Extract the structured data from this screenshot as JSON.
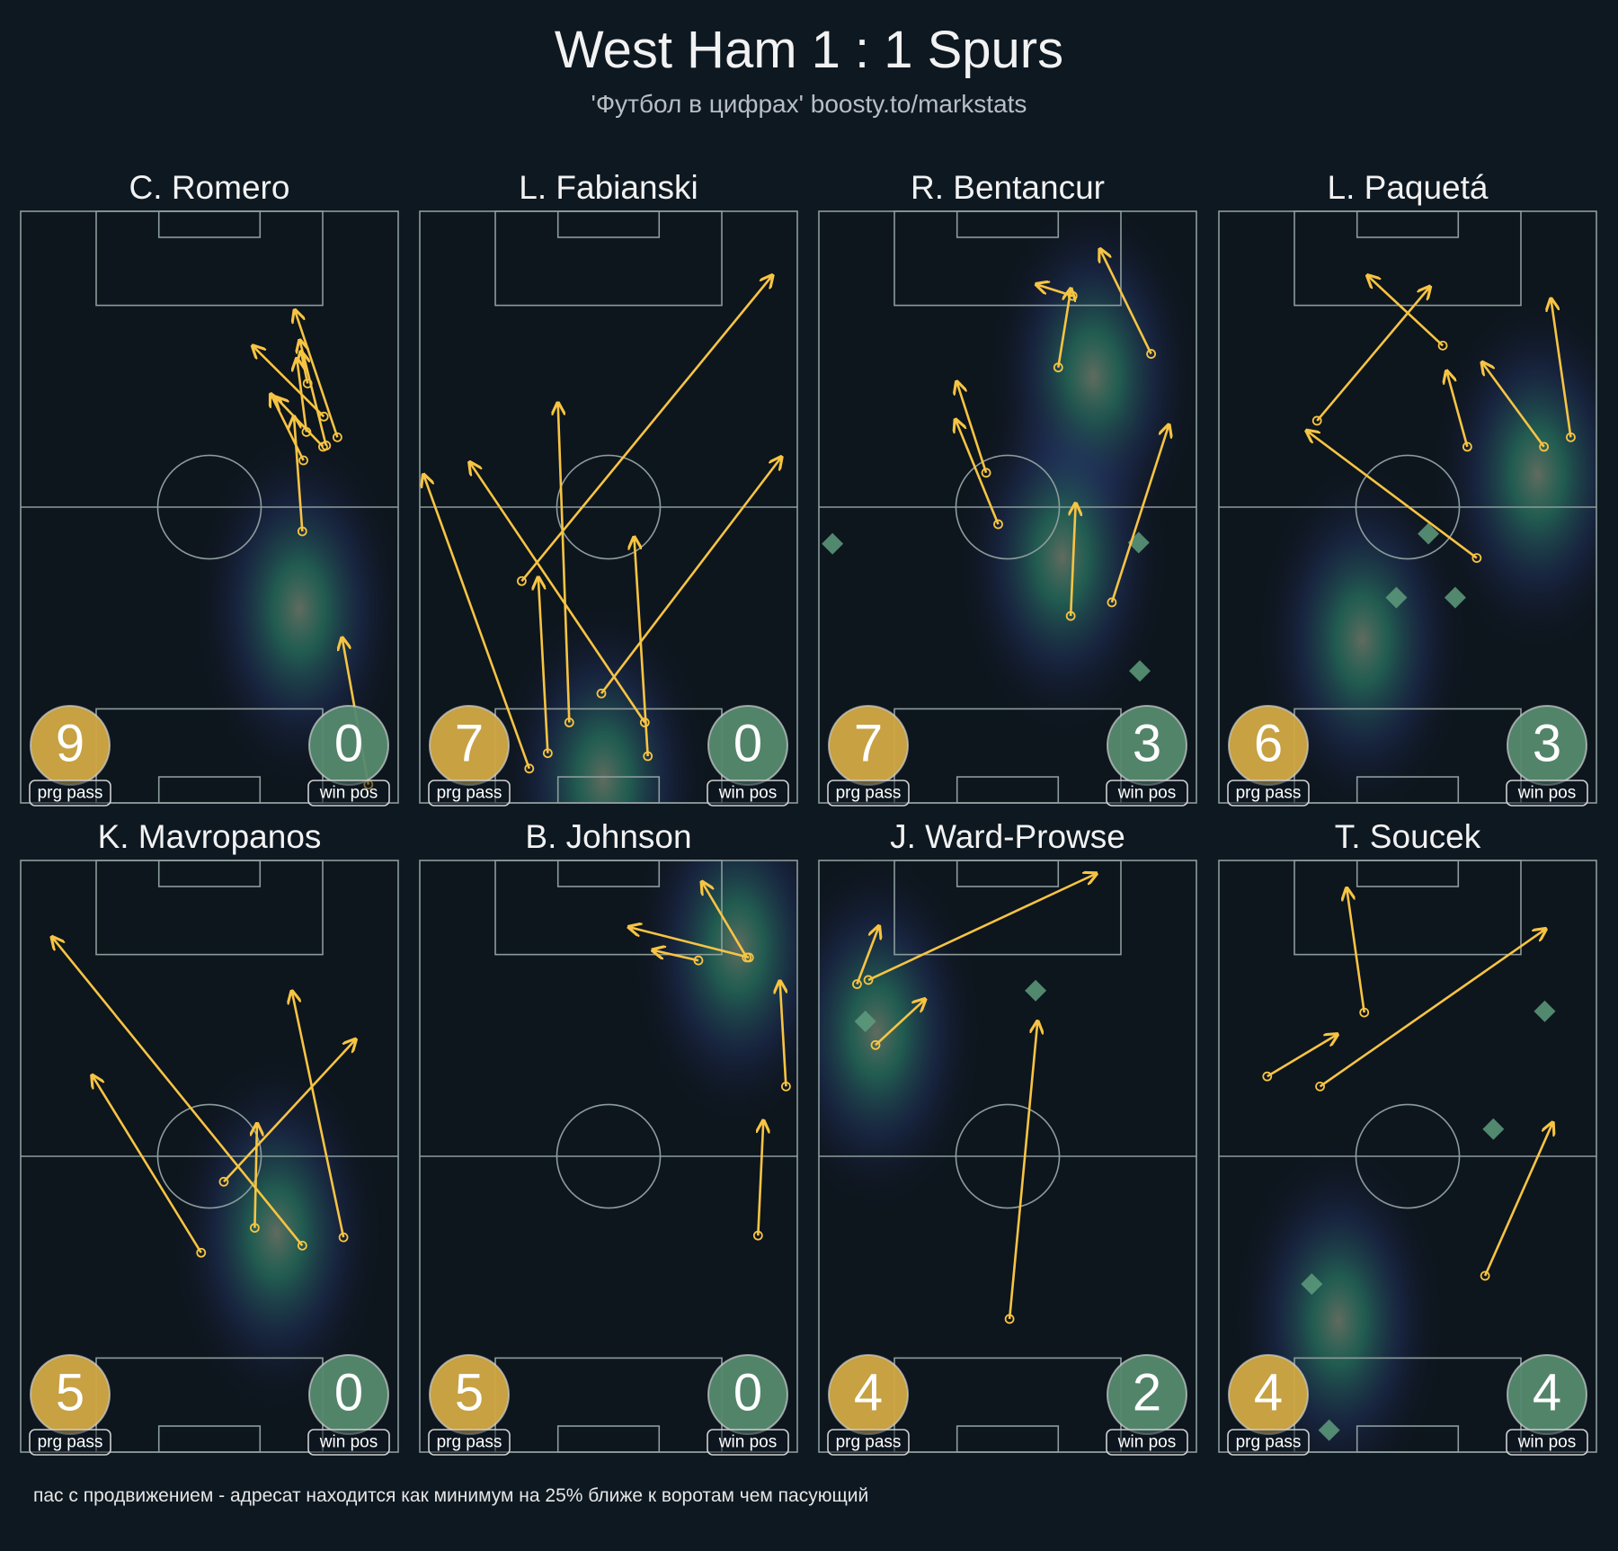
{
  "header": {
    "title": "West Ham 1 : 1 Spurs",
    "subtitle": "'Футбол в цифрах' boosty.to/markstats"
  },
  "footnote": "пас с продвижением - адресат находится как минимум на 25% ближе к воротам чем пасующий",
  "colors": {
    "background": "#0e1821",
    "pitch_lines": "#8c9c9c",
    "pass_arrow": "#f7c443",
    "prg_pass_badge": "#d1a944",
    "win_pos_badge": "#568a6f",
    "win_pos_marker": "#5e9c7c",
    "heat": "#2f9a7a"
  },
  "labels": {
    "prg_pass": "prg pass",
    "win_pos": "win pos"
  },
  "chart_data": {
    "type": "pass_map",
    "pitch_units": "percent of width (x) / length toward attacked goal (y)",
    "legend": [
      "prg pass",
      "win pos"
    ],
    "players": [
      {
        "name": "C. Romero",
        "prg_pass": "9",
        "win_pos": "0",
        "passes": [
          [
            74.6,
            45.9,
            72.4,
            65.1
          ],
          [
            74.9,
            57.9,
            66.4,
            68.9
          ],
          [
            80.1,
            60.2,
            67.8,
            68.4
          ],
          [
            75.7,
            62.7,
            73.2,
            74.9
          ],
          [
            80.9,
            60.4,
            74.0,
            78.0
          ],
          [
            83.9,
            61.8,
            72.7,
            83.1
          ],
          [
            80.3,
            65.3,
            61.7,
            77.1
          ],
          [
            76.0,
            70.9,
            74.3,
            76.1
          ],
          [
            92.1,
            3.1,
            85.2,
            27.7
          ]
        ],
        "win_positions": [],
        "density_peaks": [
          [
            73.8,
            32.8
          ]
        ]
      },
      {
        "name": "L. Fabianski",
        "prg_pass": "7",
        "win_pos": "0",
        "passes": [
          [
            27.0,
            37.5,
            93.2,
            89.0
          ],
          [
            48.1,
            18.5,
            95.6,
            58.3
          ],
          [
            29.0,
            5.8,
            1.1,
            55.3
          ],
          [
            33.9,
            8.4,
            31.4,
            37.9
          ],
          [
            39.6,
            13.6,
            36.6,
            67.4
          ],
          [
            59.6,
            13.6,
            13.4,
            57.4
          ],
          [
            60.4,
            7.9,
            56.8,
            44.7
          ]
        ],
        "win_positions": [],
        "density_peaks": [
          [
            48.6,
            4.0
          ]
        ]
      },
      {
        "name": "R. Bentancur",
        "prg_pass": "7",
        "win_pos": "3",
        "passes": [
          [
            63.4,
            73.6,
            66.7,
            86.7
          ],
          [
            67.2,
            85.7,
            57.9,
            87.6
          ],
          [
            88.0,
            75.9,
            74.6,
            93.4
          ],
          [
            44.3,
            55.8,
            36.6,
            71.0
          ],
          [
            47.5,
            47.1,
            36.3,
            64.6
          ],
          [
            66.7,
            31.6,
            68.0,
            50.4
          ],
          [
            77.6,
            33.9,
            92.6,
            63.7
          ]
        ],
        "win_positions": [
          [
            3.6,
            43.8
          ],
          [
            84.7,
            44.0
          ],
          [
            85.0,
            22.3
          ]
        ],
        "density_peaks": [
          [
            72.7,
            72.1
          ],
          [
            64.5,
            41.5
          ]
        ]
      },
      {
        "name": "L. Paquetá",
        "prg_pass": "6",
        "win_pos": "3",
        "passes": [
          [
            59.3,
            77.3,
            39.6,
            89.0
          ],
          [
            26.0,
            64.6,
            55.7,
            87.1
          ],
          [
            65.8,
            60.2,
            60.4,
            72.8
          ],
          [
            86.1,
            60.2,
            69.9,
            74.3
          ],
          [
            93.2,
            61.8,
            88.0,
            85.0
          ],
          [
            68.3,
            41.4,
            23.5,
            62.8
          ]
        ],
        "win_positions": [
          [
            55.5,
            45.5
          ],
          [
            47.0,
            34.7
          ],
          [
            62.6,
            34.7
          ]
        ],
        "density_peaks": [
          [
            84.4,
            55.5
          ],
          [
            38.0,
            27.6
          ]
        ]
      },
      {
        "name": "K. Mavropanos",
        "prg_pass": "5",
        "win_pos": "0",
        "passes": [
          [
            47.8,
            33.7,
            19.1,
            63.5
          ],
          [
            74.6,
            34.9,
            8.5,
            86.9
          ],
          [
            53.8,
            45.7,
            88.5,
            69.6
          ],
          [
            62.0,
            37.9,
            62.6,
            55.3
          ],
          [
            85.5,
            36.3,
            71.9,
            77.7
          ]
        ],
        "win_positions": [],
        "density_peaks": [
          [
            67.8,
            37.0
          ]
        ]
      },
      {
        "name": "B. Johnson",
        "prg_pass": "5",
        "win_pos": "0",
        "passes": [
          [
            87.2,
            83.6,
            55.7,
            88.7
          ],
          [
            73.8,
            83.1,
            62.0,
            84.8
          ],
          [
            86.6,
            83.6,
            74.9,
            96.2
          ],
          [
            97.0,
            61.8,
            95.4,
            79.4
          ],
          [
            89.6,
            36.6,
            91.0,
            55.8
          ]
        ],
        "win_positions": [],
        "density_peaks": [
          [
            84.2,
            85.3
          ]
        ]
      },
      {
        "name": "J. Ward-Prowse",
        "prg_pass": "4",
        "win_pos": "2",
        "passes": [
          [
            13.1,
            79.8,
            73.2,
            97.7
          ],
          [
            10.1,
            79.1,
            15.8,
            88.7
          ],
          [
            15.0,
            68.8,
            27.9,
            76.4
          ],
          [
            50.5,
            22.5,
            57.9,
            72.6
          ]
        ],
        "win_positions": [
          [
            57.4,
            78.0
          ],
          [
            12.3,
            72.8
          ]
        ],
        "density_peaks": [
          [
            15.3,
            71.0
          ]
        ]
      },
      {
        "name": "T. Soucek",
        "prg_pass": "4",
        "win_pos": "4",
        "passes": [
          [
            38.5,
            74.3,
            33.9,
            95.1
          ],
          [
            12.8,
            63.5,
            31.1,
            70.5
          ],
          [
            26.8,
            61.8,
            86.3,
            88.3
          ],
          [
            70.5,
            29.8,
            88.3,
            55.5
          ]
        ],
        "win_positions": [
          [
            86.3,
            74.5
          ],
          [
            72.7,
            54.6
          ],
          [
            24.6,
            28.4
          ],
          [
            29.2,
            3.7
          ]
        ],
        "density_peaks": [
          [
            31.7,
            22.2
          ]
        ]
      }
    ]
  }
}
